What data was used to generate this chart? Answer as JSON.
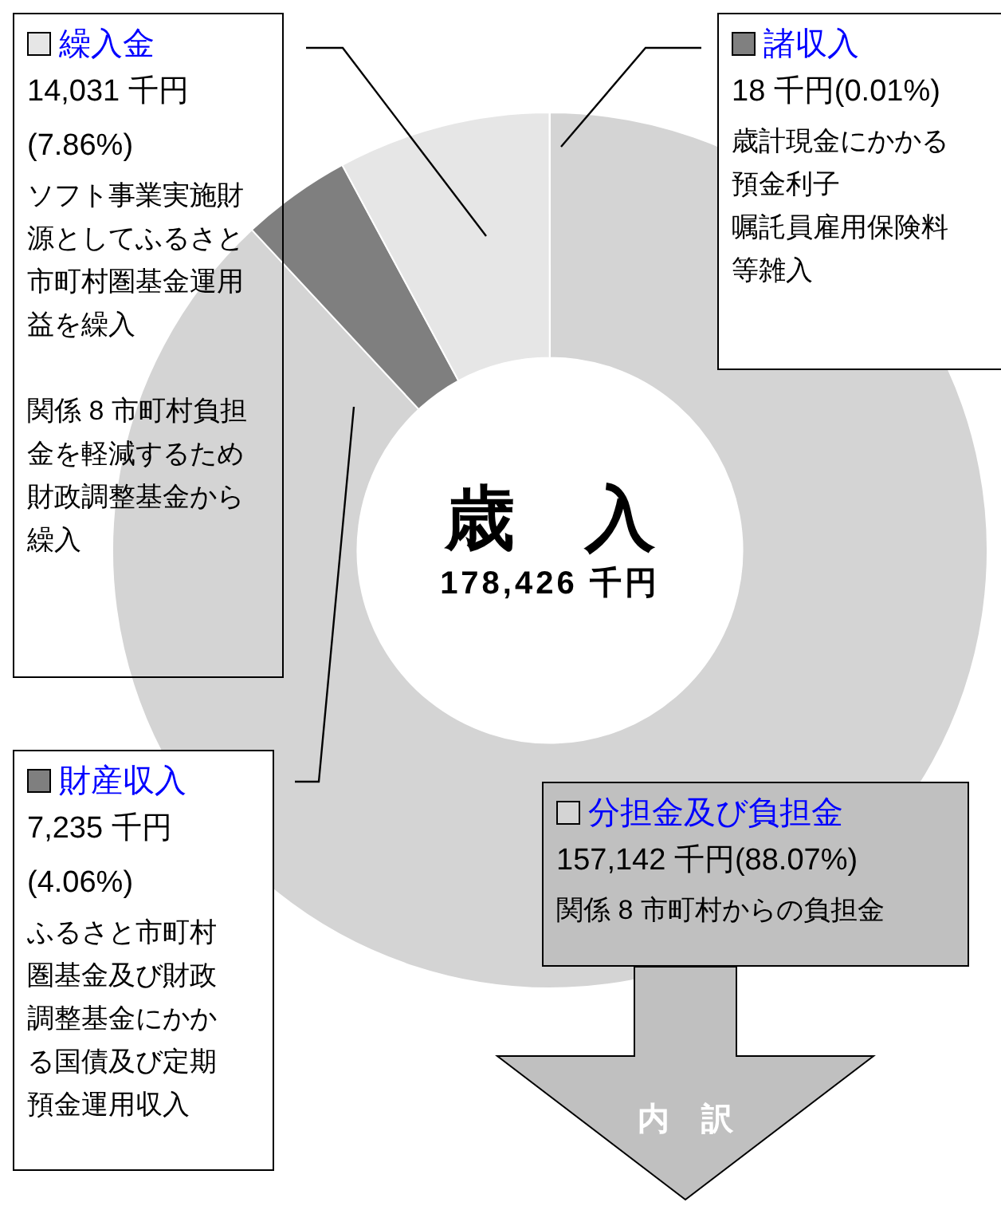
{
  "chart_data": {
    "type": "donut",
    "title": "歳　入",
    "subtitle": "178,426 千円",
    "categories": [
      "分担金及び負担金",
      "財産収入",
      "繰入金",
      "諸収入"
    ],
    "values": [
      157142,
      7235,
      14031,
      18
    ],
    "colors": [
      "#d4d4d4",
      "#7f7f7f",
      "#e6e6e6",
      "#808080"
    ],
    "value_labels": [
      "157,142 千円(88.07%)",
      "7,235 千円(4.06%)",
      "14,031 千円(7.86%)",
      "18 千円(0.01%)"
    ],
    "annotations": [
      "関係 8 市町村からの負担金",
      "ふるさと市町村圏基金及び財政調整基金にかかる国債及び定期預金運用収入",
      "ソフト事業実施財源としてふるさと市町村圏基金運用益を繰入",
      "関係 8 市町村負担金を軽減するため財政調整基金から繰入",
      "歳計現金にかかる預金利子",
      "嘱託員雇用保険料等雑入",
      "内　訳"
    ],
    "legend": "left"
  }
}
